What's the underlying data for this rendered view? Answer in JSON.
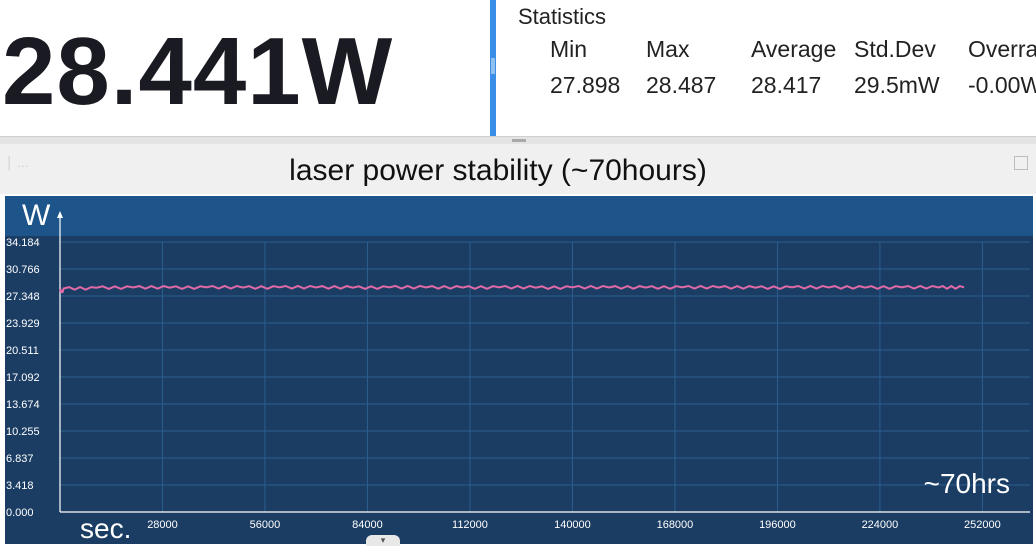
{
  "reading": {
    "value": "28.441W"
  },
  "statistics": {
    "title": "Statistics",
    "columns": [
      {
        "header": "Min",
        "value": "27.898"
      },
      {
        "header": "Max",
        "value": "28.487"
      },
      {
        "header": "Average",
        "value": "28.417"
      },
      {
        "header": "Std.Dev",
        "value": "29.5mW"
      },
      {
        "header": "Overra",
        "value": "-0.00W"
      }
    ]
  },
  "chart_data": {
    "type": "line",
    "title": "laser power stability (~70hours)",
    "ylabel": "W",
    "xlabel": "sec.",
    "annotation": "~70hrs",
    "grid": true,
    "xlim": [
      0,
      265000
    ],
    "ylim": [
      0,
      34.184
    ],
    "x_ticks": [
      {
        "value": 28000,
        "label": "28000"
      },
      {
        "value": 56000,
        "label": "56000"
      },
      {
        "value": 84000,
        "label": "84000"
      },
      {
        "value": 112000,
        "label": "112000"
      },
      {
        "value": 140000,
        "label": "140000"
      },
      {
        "value": 168000,
        "label": "168000"
      },
      {
        "value": 196000,
        "label": "196000"
      },
      {
        "value": 224000,
        "label": "224000"
      },
      {
        "value": 252000,
        "label": "252000"
      }
    ],
    "y_ticks": [
      {
        "value": 0,
        "label": "0.000"
      },
      {
        "value": 3.418,
        "label": "3.418"
      },
      {
        "value": 6.837,
        "label": "6.837"
      },
      {
        "value": 10.255,
        "label": "10.255"
      },
      {
        "value": 13.674,
        "label": "13.674"
      },
      {
        "value": 17.092,
        "label": "17.092"
      },
      {
        "value": 20.511,
        "label": "20.511"
      },
      {
        "value": 23.929,
        "label": "23.929"
      },
      {
        "value": 27.348,
        "label": "27.348"
      },
      {
        "value": 30.766,
        "label": "30.766"
      },
      {
        "value": 34.184,
        "label": "34.184"
      }
    ],
    "series": [
      {
        "color": "#e06aa8",
        "x": [
          0,
          1000,
          10000,
          20000,
          30000,
          40000,
          50000,
          60000,
          70000,
          80000,
          90000,
          100000,
          110000,
          120000,
          130000,
          140000,
          150000,
          160000,
          170000,
          180000,
          190000,
          200000,
          210000,
          220000,
          230000,
          240000,
          247000
        ],
        "y": [
          27.9,
          28.3,
          28.4,
          28.42,
          28.4,
          28.43,
          28.41,
          28.44,
          28.42,
          28.4,
          28.45,
          28.42,
          28.41,
          28.43,
          28.4,
          28.44,
          28.42,
          28.41,
          28.43,
          28.42,
          28.4,
          28.44,
          28.42,
          28.41,
          28.43,
          28.42,
          28.44
        ]
      }
    ]
  },
  "colors": {
    "plot_bg": "#1b3d63",
    "top_band": "#1d5489",
    "grid": "#2b5e8f",
    "axis": "#ffffff",
    "line": "#e06aa8",
    "accent": "#3a8ee6"
  }
}
